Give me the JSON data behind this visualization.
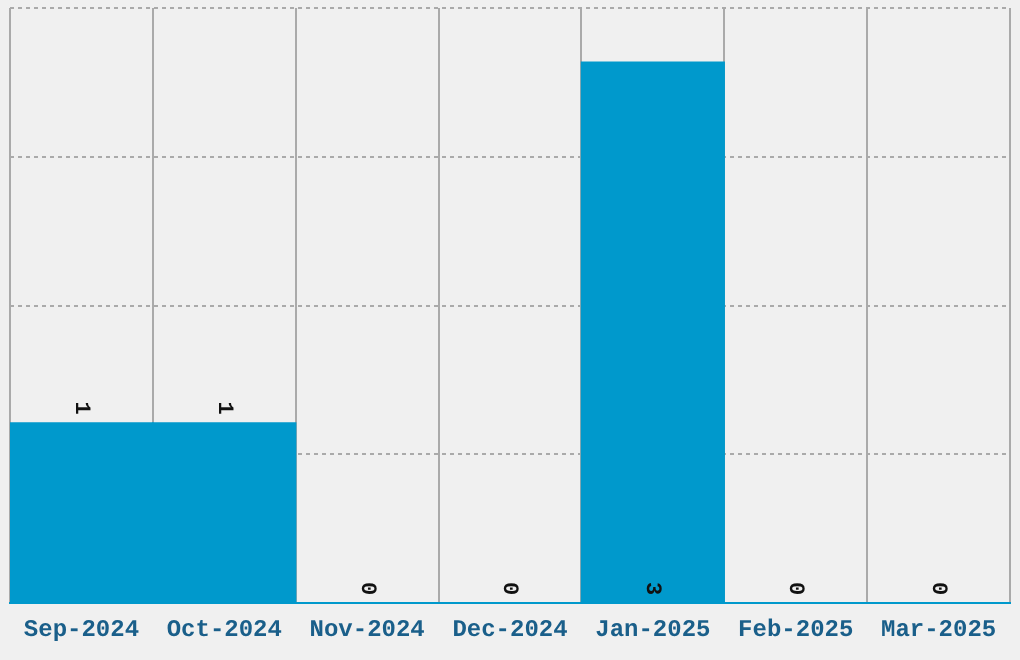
{
  "chart_data": {
    "type": "bar",
    "categories": [
      "Sep-2024",
      "Oct-2024",
      "Nov-2024",
      "Dec-2024",
      "Jan-2025",
      "Feb-2025",
      "Mar-2025"
    ],
    "values": [
      1,
      1,
      0,
      0,
      3,
      0,
      0
    ],
    "color": "#0099cc",
    "data_labels": true,
    "grid": true,
    "legend": false,
    "tick_labels": "x",
    "ylim": [
      0,
      3.3
    ],
    "yticks": [
      {
        "value": 0,
        "label": null
      },
      {
        "value": 0.825,
        "label": null
      },
      {
        "value": 1.65,
        "label": null
      },
      {
        "value": 2.475,
        "label": null
      },
      {
        "value": 3.3,
        "label": null
      }
    ]
  }
}
